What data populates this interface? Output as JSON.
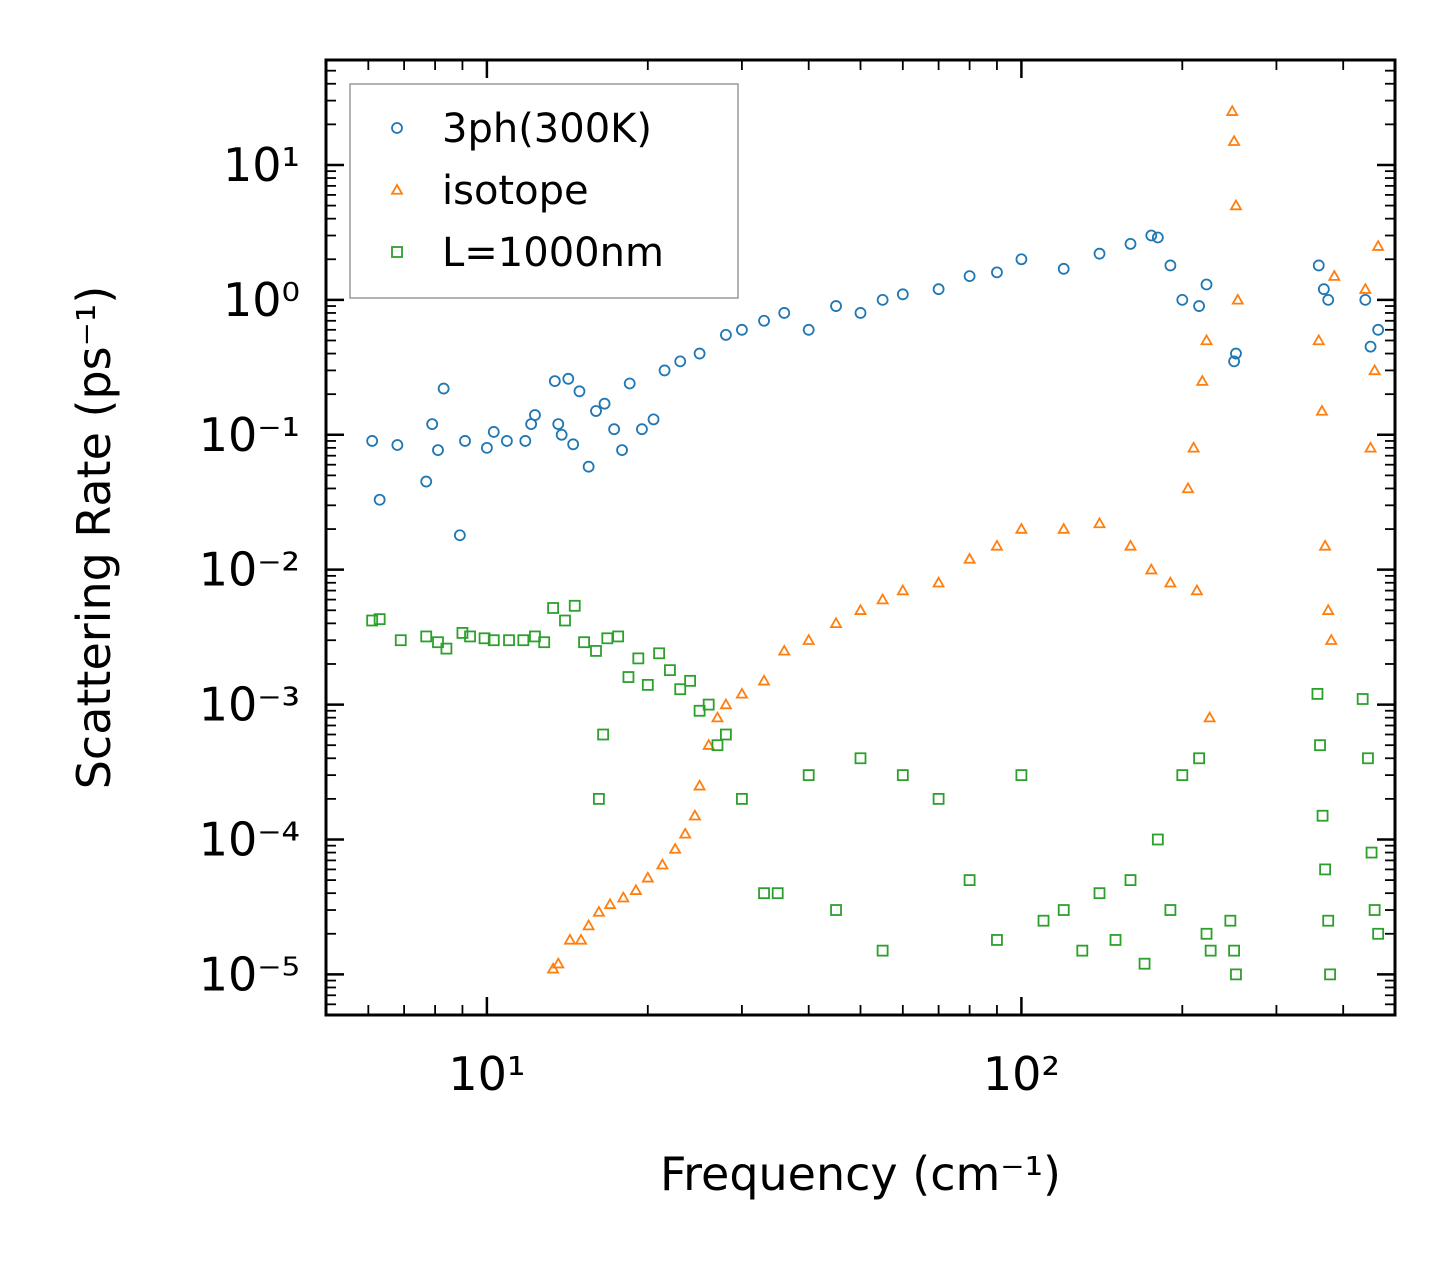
{
  "chart_data": {
    "type": "scatter",
    "xscale": "log",
    "yscale": "log",
    "xlabel": "Frequency (cm⁻¹)",
    "ylabel": "Scattering Rate (ps⁻¹)",
    "xlim": [
      5,
      500
    ],
    "ylim": [
      5e-06,
      60
    ],
    "xticks": [
      {
        "value": 10,
        "label": "10¹"
      },
      {
        "value": 100,
        "label": "10²"
      }
    ],
    "yticks": [
      {
        "value": 1e-05,
        "label": "10⁻⁵"
      },
      {
        "value": 0.0001,
        "label": "10⁻⁴"
      },
      {
        "value": 0.001,
        "label": "10⁻³"
      },
      {
        "value": 0.01,
        "label": "10⁻²"
      },
      {
        "value": 0.1,
        "label": "10⁻¹"
      },
      {
        "value": 1,
        "label": "10⁰"
      },
      {
        "value": 10,
        "label": "10¹"
      }
    ],
    "legend_position": "top-left",
    "series": [
      {
        "name": "3ph(300K)",
        "marker": "circle",
        "color": "#1f77b4",
        "points": [
          [
            6.1,
            0.09
          ],
          [
            6.3,
            0.033
          ],
          [
            6.8,
            0.084
          ],
          [
            7.7,
            0.045
          ],
          [
            7.9,
            0.12
          ],
          [
            8.1,
            0.077
          ],
          [
            8.3,
            0.22
          ],
          [
            8.9,
            0.018
          ],
          [
            9.1,
            0.09
          ],
          [
            10,
            0.08
          ],
          [
            10.3,
            0.105
          ],
          [
            10.9,
            0.09
          ],
          [
            11.8,
            0.09
          ],
          [
            12.1,
            0.12
          ],
          [
            12.3,
            0.14
          ],
          [
            13.4,
            0.25
          ],
          [
            13.6,
            0.12
          ],
          [
            13.8,
            0.1
          ],
          [
            14.2,
            0.26
          ],
          [
            14.5,
            0.085
          ],
          [
            14.9,
            0.21
          ],
          [
            15.5,
            0.058
          ],
          [
            16,
            0.15
          ],
          [
            16.6,
            0.17
          ],
          [
            17.3,
            0.11
          ],
          [
            17.9,
            0.077
          ],
          [
            18.5,
            0.24
          ],
          [
            19.5,
            0.11
          ],
          [
            20.5,
            0.13
          ],
          [
            21.5,
            0.3
          ],
          [
            23,
            0.35
          ],
          [
            25,
            0.4
          ],
          [
            28,
            0.55
          ],
          [
            30,
            0.6
          ],
          [
            33,
            0.7
          ],
          [
            36,
            0.8
          ],
          [
            40,
            0.6
          ],
          [
            45,
            0.9
          ],
          [
            50,
            0.8
          ],
          [
            55,
            1.0
          ],
          [
            60,
            1.1
          ],
          [
            70,
            1.2
          ],
          [
            80,
            1.5
          ],
          [
            90,
            1.6
          ],
          [
            100,
            2.0
          ],
          [
            120,
            1.7
          ],
          [
            140,
            2.2
          ],
          [
            160,
            2.6
          ],
          [
            175,
            3.0
          ],
          [
            180,
            2.9
          ],
          [
            190,
            1.8
          ],
          [
            200,
            1.0
          ],
          [
            215,
            0.9
          ],
          [
            222,
            1.3
          ],
          [
            250,
            0.35
          ],
          [
            252,
            0.4
          ],
          [
            360,
            1.8
          ],
          [
            368,
            1.2
          ],
          [
            375,
            1.0
          ],
          [
            440,
            1.0
          ],
          [
            450,
            0.45
          ],
          [
            465,
            0.6
          ]
        ]
      },
      {
        "name": "isotope",
        "marker": "triangle",
        "color": "#ff7f0e",
        "points": [
          [
            13.3,
            1.1e-05
          ],
          [
            13.6,
            1.2e-05
          ],
          [
            14.3,
            1.8e-05
          ],
          [
            15,
            1.8e-05
          ],
          [
            15.5,
            2.3e-05
          ],
          [
            16.2,
            2.9e-05
          ],
          [
            17,
            3.3e-05
          ],
          [
            18,
            3.7e-05
          ],
          [
            19,
            4.2e-05
          ],
          [
            20,
            5.2e-05
          ],
          [
            21.3,
            6.5e-05
          ],
          [
            22.5,
            8.5e-05
          ],
          [
            23.5,
            0.00011
          ],
          [
            24.5,
            0.00015
          ],
          [
            25,
            0.00025
          ],
          [
            26,
            0.0005
          ],
          [
            27,
            0.0008
          ],
          [
            28,
            0.001
          ],
          [
            30,
            0.0012
          ],
          [
            33,
            0.0015
          ],
          [
            36,
            0.0025
          ],
          [
            40,
            0.003
          ],
          [
            45,
            0.004
          ],
          [
            50,
            0.005
          ],
          [
            55,
            0.006
          ],
          [
            60,
            0.007
          ],
          [
            70,
            0.008
          ],
          [
            80,
            0.012
          ],
          [
            90,
            0.015
          ],
          [
            100,
            0.02
          ],
          [
            120,
            0.02
          ],
          [
            140,
            0.022
          ],
          [
            160,
            0.015
          ],
          [
            175,
            0.01
          ],
          [
            190,
            0.008
          ],
          [
            205,
            0.04
          ],
          [
            210,
            0.08
          ],
          [
            213,
            0.007
          ],
          [
            218,
            0.25
          ],
          [
            222,
            0.5
          ],
          [
            225,
            0.0008
          ],
          [
            248,
            25
          ],
          [
            250,
            15
          ],
          [
            252,
            5
          ],
          [
            254,
            1
          ],
          [
            360,
            0.5
          ],
          [
            365,
            0.15
          ],
          [
            370,
            0.015
          ],
          [
            375,
            0.005
          ],
          [
            380,
            0.003
          ],
          [
            385,
            1.5
          ],
          [
            440,
            1.2
          ],
          [
            450,
            0.08
          ],
          [
            458,
            0.3
          ],
          [
            465,
            2.5
          ]
        ]
      },
      {
        "name": "L=1000nm",
        "marker": "square",
        "color": "#2ca02c",
        "points": [
          [
            6.1,
            0.0042
          ],
          [
            6.3,
            0.0043
          ],
          [
            6.9,
            0.003
          ],
          [
            7.7,
            0.0032
          ],
          [
            8.1,
            0.0029
          ],
          [
            8.4,
            0.0026
          ],
          [
            9,
            0.0034
          ],
          [
            9.3,
            0.0032
          ],
          [
            9.9,
            0.0031
          ],
          [
            10.3,
            0.003
          ],
          [
            11,
            0.003
          ],
          [
            11.7,
            0.003
          ],
          [
            12.3,
            0.0032
          ],
          [
            12.8,
            0.0029
          ],
          [
            13.3,
            0.0052
          ],
          [
            14,
            0.0042
          ],
          [
            14.6,
            0.0054
          ],
          [
            15.2,
            0.0029
          ],
          [
            16,
            0.0025
          ],
          [
            16.8,
            0.0031
          ],
          [
            17.6,
            0.0032
          ],
          [
            18.4,
            0.0016
          ],
          [
            19.2,
            0.0022
          ],
          [
            20,
            0.0014
          ],
          [
            21,
            0.0024
          ],
          [
            16.5,
            0.0006
          ],
          [
            16.2,
            0.0002
          ],
          [
            22,
            0.0018
          ],
          [
            23,
            0.0013
          ],
          [
            24,
            0.0015
          ],
          [
            25,
            0.0009
          ],
          [
            26,
            0.001
          ],
          [
            27,
            0.0005
          ],
          [
            28,
            0.0006
          ],
          [
            30,
            0.0002
          ],
          [
            33,
            4e-05
          ],
          [
            35,
            4e-05
          ],
          [
            40,
            0.0003
          ],
          [
            45,
            3e-05
          ],
          [
            50,
            0.0004
          ],
          [
            55,
            1.5e-05
          ],
          [
            60,
            0.0003
          ],
          [
            70,
            0.0002
          ],
          [
            80,
            5e-05
          ],
          [
            90,
            1.8e-05
          ],
          [
            100,
            0.0003
          ],
          [
            110,
            2.5e-05
          ],
          [
            120,
            3e-05
          ],
          [
            130,
            1.5e-05
          ],
          [
            140,
            4e-05
          ],
          [
            150,
            1.8e-05
          ],
          [
            160,
            5e-05
          ],
          [
            170,
            1.2e-05
          ],
          [
            180,
            0.0001
          ],
          [
            190,
            3e-05
          ],
          [
            200,
            0.0003
          ],
          [
            215,
            0.0004
          ],
          [
            222,
            2e-05
          ],
          [
            226,
            1.5e-05
          ],
          [
            246,
            2.5e-05
          ],
          [
            250,
            1.5e-05
          ],
          [
            252,
            1e-05
          ],
          [
            358,
            0.0012
          ],
          [
            362,
            0.0005
          ],
          [
            366,
            0.00015
          ],
          [
            370,
            6e-05
          ],
          [
            375,
            2.5e-05
          ],
          [
            378,
            1e-05
          ],
          [
            435,
            0.0011
          ],
          [
            445,
            0.0004
          ],
          [
            452,
            8e-05
          ],
          [
            458,
            3e-05
          ],
          [
            465,
            2e-05
          ]
        ]
      }
    ]
  }
}
